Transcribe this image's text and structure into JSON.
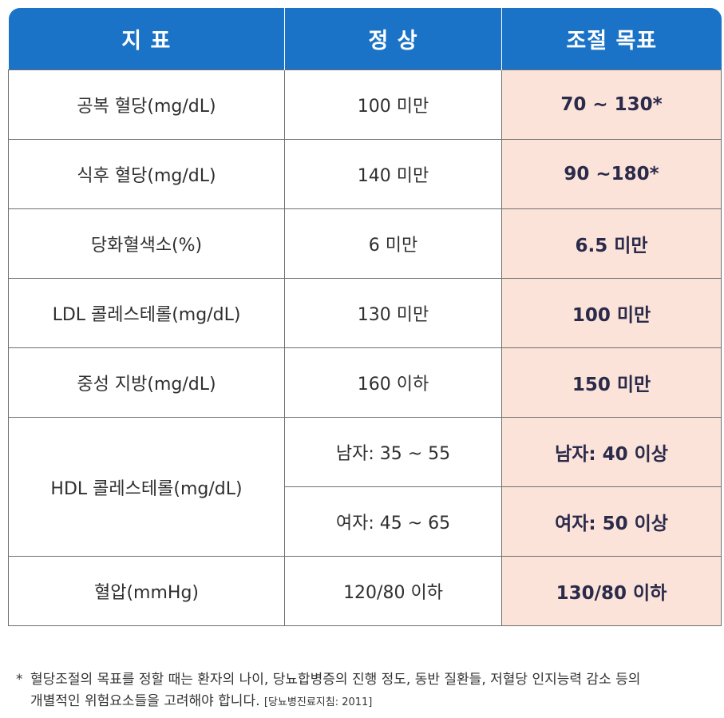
{
  "header": {
    "col1": "지 표",
    "col2": "정 상",
    "col3": "조절 목표"
  },
  "rows": [
    {
      "indicator": "공복 혈당(mg/dL)",
      "normal": "100 미만",
      "target": "70 ~ 130*"
    },
    {
      "indicator": "식후 혈당(mg/dL)",
      "normal": "140 미만",
      "target": "90 ~180*"
    },
    {
      "indicator": "당화혈색소(%)",
      "normal": "6 미만",
      "target": "6.5 미만"
    },
    {
      "indicator": "LDL 콜레스테롤(mg/dL)",
      "normal": "130 미만",
      "target": "100 미만"
    },
    {
      "indicator": "중성 지방(mg/dL)",
      "normal": "160 이하",
      "target": "150 미만"
    }
  ],
  "hdl": {
    "indicator": "HDL 콜레스테롤(mg/dL)",
    "male_normal": "남자: 35 ~ 55",
    "male_target": "남자: 40 이상",
    "female_normal": "여자: 45 ~ 65",
    "female_target": "여자: 50 이상"
  },
  "bp": {
    "indicator": "혈압(mmHg)",
    "normal": "120/80 이하",
    "target": "130/80 이하"
  },
  "footnote": {
    "star": "*",
    "line1": "혈당조절의 목표를 정할 때는 환자의 나이, 당뇨합병증의 진행 정도, 동반 질환들, 저혈당 인지능력 감소 등의",
    "line2": "개별적인 위험요소들을 고려해야 합니다.",
    "source": "[당뇨병진료지침: 2011]"
  },
  "colors": {
    "header_bg": "#1b73c7",
    "target_bg": "#fbe3d9",
    "border": "#6f6f6f"
  }
}
